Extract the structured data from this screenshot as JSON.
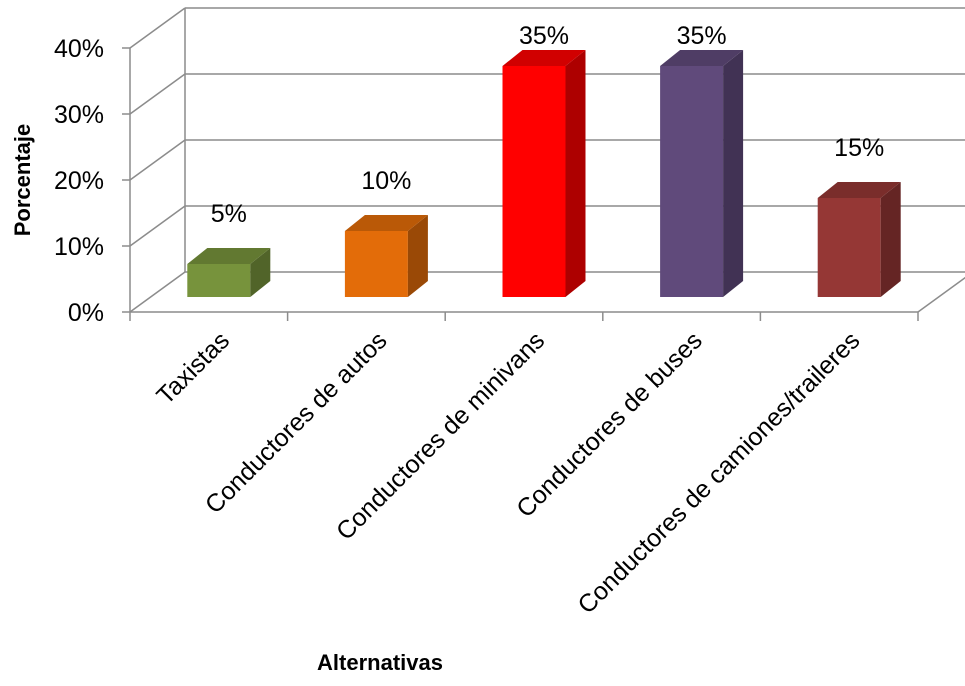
{
  "chart_data": {
    "type": "bar",
    "style": "3d-column",
    "categories": [
      "Taxistas",
      "Conductores de autos",
      "Conductores de minivans",
      "Conductores de buses",
      "Conductores de camiones/traileres"
    ],
    "values": [
      5,
      10,
      35,
      35,
      15
    ],
    "data_labels": [
      "5%",
      "10%",
      "35%",
      "35%",
      "15%"
    ],
    "colors": [
      "#77933c",
      "#e36c09",
      "#ff0000",
      "#604a7b",
      "#953735"
    ],
    "title": "",
    "xlabel": "Alternativas",
    "ylabel": "Porcentaje",
    "ylim": [
      0,
      40
    ],
    "yticks": [
      "0%",
      "10%",
      "20%",
      "30%",
      "40%"
    ],
    "grid": true,
    "legend": "none"
  }
}
